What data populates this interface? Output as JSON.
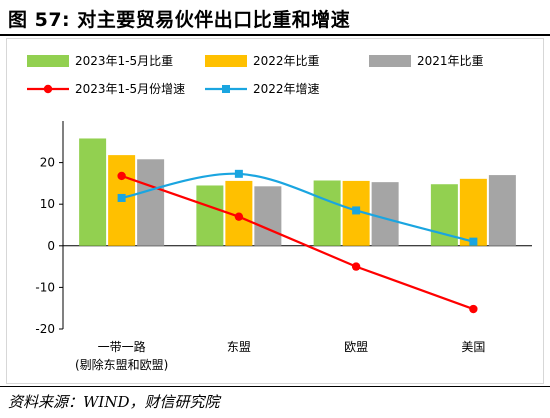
{
  "page": {
    "title": "图 57:  对主要贸易伙伴出口比重和增速",
    "source": "资料来源：WIND，财信研究院"
  },
  "chart_data": {
    "type": "bar",
    "title": "",
    "xlabel": "",
    "ylabel": "",
    "categories": [
      "一带一路",
      "东盟",
      "欧盟",
      "美国"
    ],
    "category_sublabels": [
      "(剔除东盟和欧盟)",
      "",
      "",
      ""
    ],
    "ylim": [
      -20,
      30
    ],
    "yticks": [
      -20,
      -10,
      0,
      10,
      20
    ],
    "grid": false,
    "legend_position": "top",
    "series": [
      {
        "name": "2023年1-5月比重",
        "kind": "bar",
        "color": "#92d050",
        "values": [
          25.8,
          14.5,
          15.7,
          14.8
        ]
      },
      {
        "name": "2022年比重",
        "kind": "bar",
        "color": "#ffc000",
        "values": [
          21.8,
          15.6,
          15.6,
          16.1
        ]
      },
      {
        "name": "2021年比重",
        "kind": "bar",
        "color": "#a5a5a5",
        "values": [
          20.8,
          14.3,
          15.3,
          17.0
        ]
      },
      {
        "name": "2023年1-5月份增速",
        "kind": "line",
        "color": "#ff0000",
        "marker": "circle",
        "smooth": false,
        "values": [
          16.8,
          7.0,
          -5.0,
          -15.2
        ]
      },
      {
        "name": "2022年增速",
        "kind": "line",
        "color": "#1aa5e0",
        "marker": "square",
        "smooth": true,
        "values": [
          11.5,
          17.3,
          8.5,
          1.0
        ]
      }
    ]
  }
}
